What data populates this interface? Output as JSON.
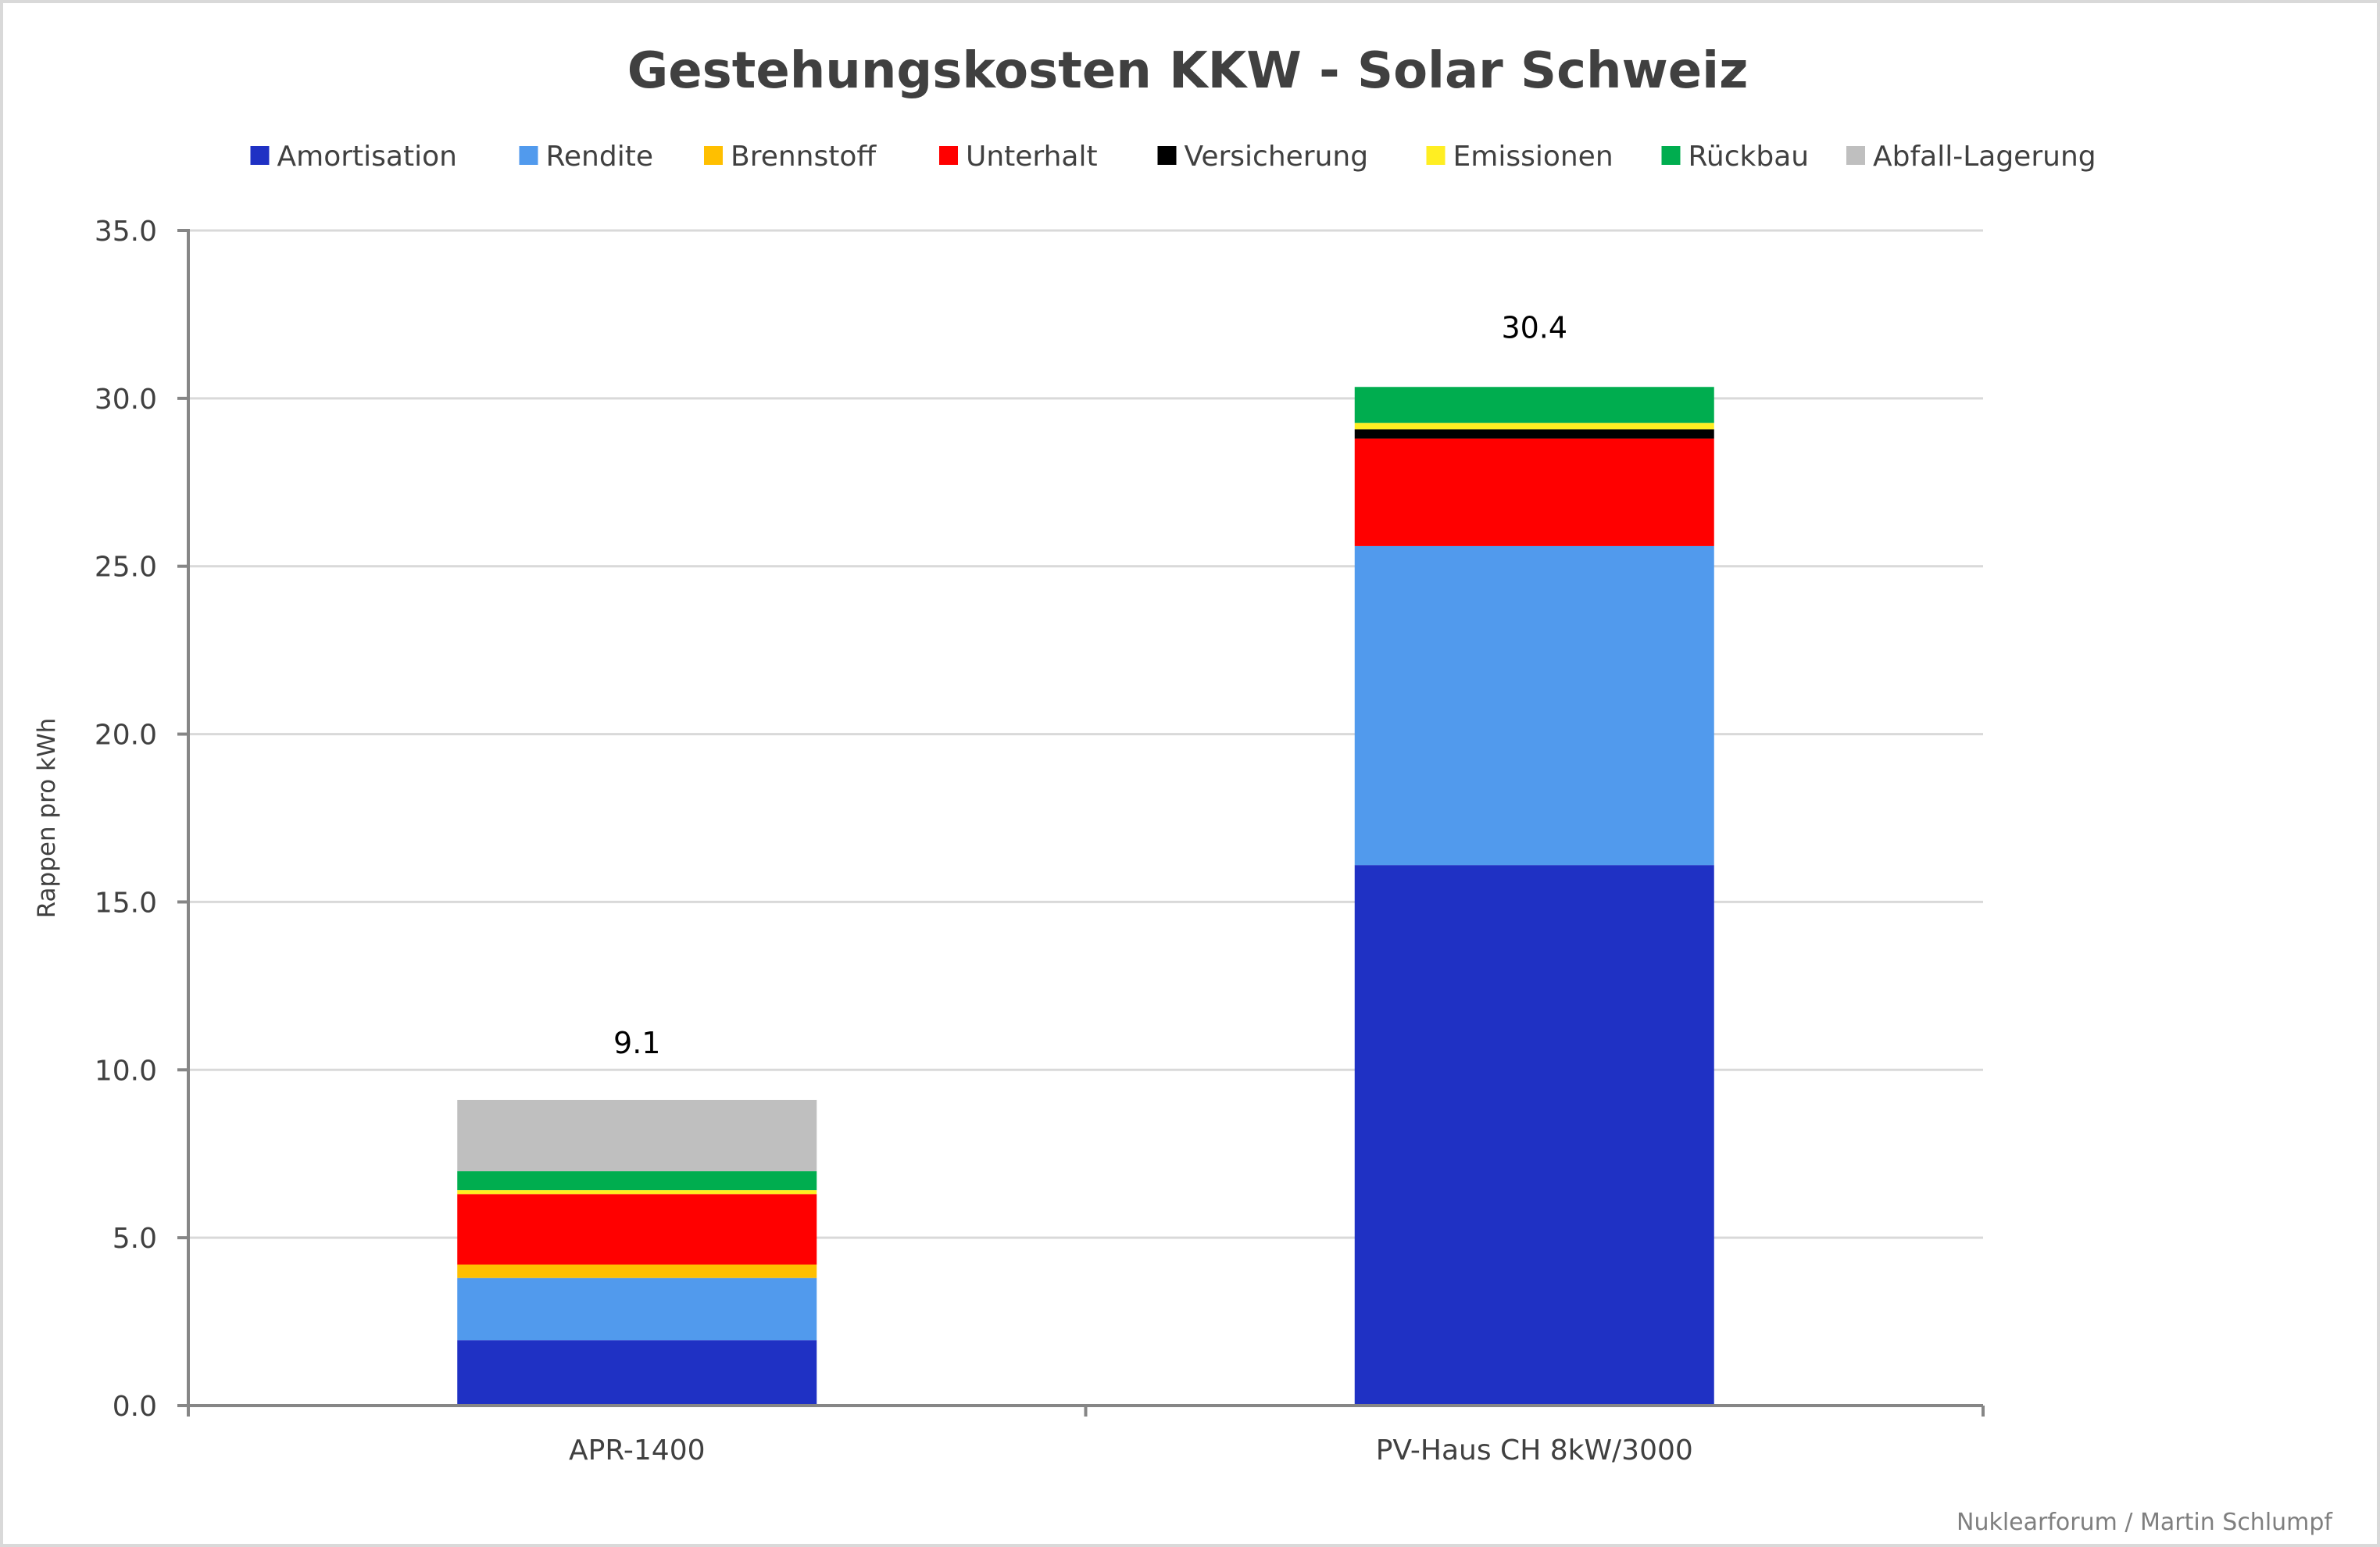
{
  "chart_data": {
    "type": "bar",
    "stacked": true,
    "title": "Gestehungskosten KKW - Solar Schweiz",
    "xlabel": "",
    "ylabel": "Rappen pro kWh",
    "ylim": [
      0,
      35
    ],
    "yticks": [
      "0.0",
      "5.0",
      "10.0",
      "15.0",
      "20.0",
      "25.0",
      "30.0",
      "35.0"
    ],
    "ytick_values": [
      0,
      5,
      10,
      15,
      20,
      25,
      30,
      35
    ],
    "grid": true,
    "legend_position": "top",
    "categories": [
      "APR-1400",
      "PV-Haus CH 8kW/3000"
    ],
    "totals": [
      9.1,
      30.4
    ],
    "total_labels": [
      "9.1",
      "30.4"
    ],
    "series": [
      {
        "name": "Amortisation",
        "color": "#1f31c4",
        "values": [
          1.95,
          16.1
        ]
      },
      {
        "name": "Rendite",
        "color": "#519aed",
        "values": [
          1.85,
          9.5
        ]
      },
      {
        "name": "Brennstoff",
        "color": "#ffbf00",
        "values": [
          0.4,
          0.0
        ]
      },
      {
        "name": "Unterhalt",
        "color": "#ff0000",
        "values": [
          2.1,
          3.2
        ]
      },
      {
        "name": "Versicherung",
        "color": "#000000",
        "values": [
          0.0,
          0.28
        ]
      },
      {
        "name": "Emissionen",
        "color": "#ffee22",
        "values": [
          0.12,
          0.19
        ]
      },
      {
        "name": "Rückbau",
        "color": "#00ad4f",
        "values": [
          0.56,
          1.07
        ]
      },
      {
        "name": "Abfall-Lagerung",
        "color": "#bfbfbf",
        "values": [
          2.12,
          0.0
        ]
      }
    ],
    "source_note": "Nuklearforum / Martin Schlumpf"
  }
}
